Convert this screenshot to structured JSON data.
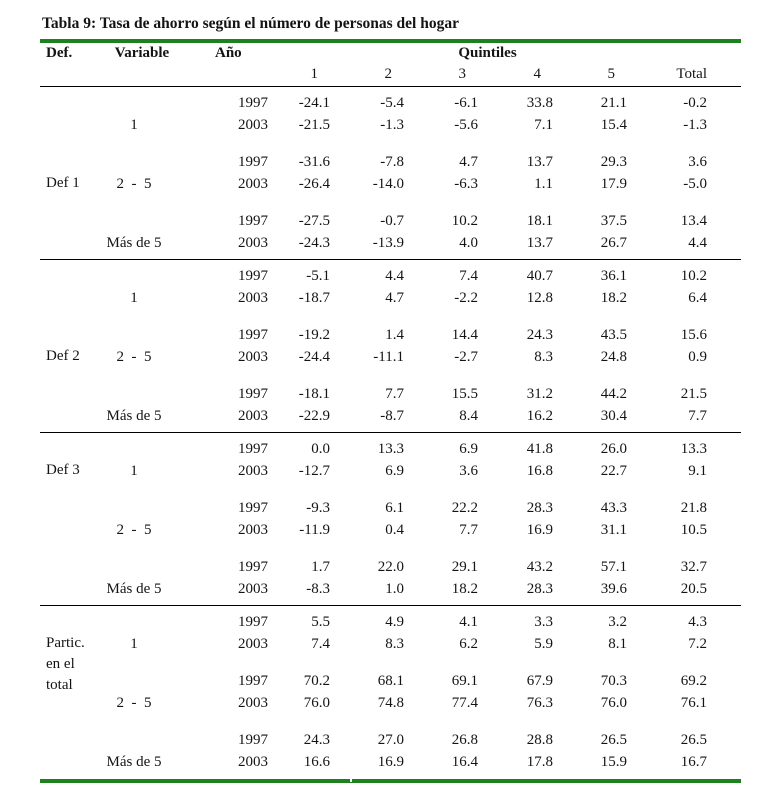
{
  "title": "Tabla 9: Tasa de ahorro según el número de personas del hogar",
  "rule_color": "#1d811d",
  "header": {
    "def": "Def.",
    "variable": "Variable",
    "year": "Año",
    "quintiles": "Quintiles",
    "quintile_columns": [
      "1",
      "2",
      "3",
      "4",
      "5"
    ],
    "total": "Total"
  },
  "table": {
    "sections": [
      {
        "def_label": "Def 1",
        "def_label_group": 1,
        "groups": [
          {
            "variable": "1",
            "rows": [
              {
                "year": "1997",
                "values": [
                  "-24.1",
                  "-5.4",
                  "-6.1",
                  "33.8",
                  "21.1",
                  "-0.2"
                ]
              },
              {
                "year": "2003",
                "values": [
                  "-21.5",
                  "-1.3",
                  "-5.6",
                  "7.1",
                  "15.4",
                  "-1.3"
                ]
              }
            ]
          },
          {
            "variable": "2  -  5",
            "rows": [
              {
                "year": "1997",
                "values": [
                  "-31.6",
                  "-7.8",
                  "4.7",
                  "13.7",
                  "29.3",
                  "3.6"
                ]
              },
              {
                "year": "2003",
                "values": [
                  "-26.4",
                  "-14.0",
                  "-6.3",
                  "1.1",
                  "17.9",
                  "-5.0"
                ]
              }
            ]
          },
          {
            "variable": "Más de 5",
            "rows": [
              {
                "year": "1997",
                "values": [
                  "-27.5",
                  "-0.7",
                  "10.2",
                  "18.1",
                  "37.5",
                  "13.4"
                ]
              },
              {
                "year": "2003",
                "values": [
                  "-24.3",
                  "-13.9",
                  "4.0",
                  "13.7",
                  "26.7",
                  "4.4"
                ]
              }
            ]
          }
        ]
      },
      {
        "def_label": "Def 2",
        "def_label_group": 1,
        "groups": [
          {
            "variable": "1",
            "rows": [
              {
                "year": "1997",
                "values": [
                  "-5.1",
                  "4.4",
                  "7.4",
                  "40.7",
                  "36.1",
                  "10.2"
                ]
              },
              {
                "year": "2003",
                "values": [
                  "-18.7",
                  "4.7",
                  "-2.2",
                  "12.8",
                  "18.2",
                  "6.4"
                ]
              }
            ]
          },
          {
            "variable": "2  -  5",
            "rows": [
              {
                "year": "1997",
                "values": [
                  "-19.2",
                  "1.4",
                  "14.4",
                  "24.3",
                  "43.5",
                  "15.6"
                ]
              },
              {
                "year": "2003",
                "values": [
                  "-24.4",
                  "-11.1",
                  "-2.7",
                  "8.3",
                  "24.8",
                  "0.9"
                ]
              }
            ]
          },
          {
            "variable": "Más de 5",
            "rows": [
              {
                "year": "1997",
                "values": [
                  "-18.1",
                  "7.7",
                  "15.5",
                  "31.2",
                  "44.2",
                  "21.5"
                ]
              },
              {
                "year": "2003",
                "values": [
                  "-22.9",
                  "-8.7",
                  "8.4",
                  "16.2",
                  "30.4",
                  "7.7"
                ]
              }
            ]
          }
        ]
      },
      {
        "def_label": "Def 3",
        "def_label_group": 0,
        "groups": [
          {
            "variable": "1",
            "rows": [
              {
                "year": "1997",
                "values": [
                  "0.0",
                  "13.3",
                  "6.9",
                  "41.8",
                  "26.0",
                  "13.3"
                ]
              },
              {
                "year": "2003",
                "values": [
                  "-12.7",
                  "6.9",
                  "3.6",
                  "16.8",
                  "22.7",
                  "9.1"
                ]
              }
            ]
          },
          {
            "variable": "2  -  5",
            "rows": [
              {
                "year": "1997",
                "values": [
                  "-9.3",
                  "6.1",
                  "22.2",
                  "28.3",
                  "43.3",
                  "21.8"
                ]
              },
              {
                "year": "2003",
                "values": [
                  "-11.9",
                  "0.4",
                  "7.7",
                  "16.9",
                  "31.1",
                  "10.5"
                ]
              }
            ]
          },
          {
            "variable": "Más de 5",
            "rows": [
              {
                "year": "1997",
                "values": [
                  "1.7",
                  "22.0",
                  "29.1",
                  "43.2",
                  "57.1",
                  "32.7"
                ]
              },
              {
                "year": "2003",
                "values": [
                  "-8.3",
                  "1.0",
                  "18.2",
                  "28.3",
                  "39.6",
                  "20.5"
                ]
              }
            ]
          }
        ]
      },
      {
        "def_label": "Partic.\nen el\ntotal",
        "def_label_group": 0,
        "groups": [
          {
            "variable": "1",
            "rows": [
              {
                "year": "1997",
                "values": [
                  "5.5",
                  "4.9",
                  "4.1",
                  "3.3",
                  "3.2",
                  "4.3"
                ]
              },
              {
                "year": "2003",
                "values": [
                  "7.4",
                  "8.3",
                  "6.2",
                  "5.9",
                  "8.1",
                  "7.2"
                ]
              }
            ]
          },
          {
            "variable": "2  -  5",
            "rows": [
              {
                "year": "1997",
                "values": [
                  "70.2",
                  "68.1",
                  "69.1",
                  "67.9",
                  "70.3",
                  "69.2"
                ]
              },
              {
                "year": "2003",
                "values": [
                  "76.0",
                  "74.8",
                  "77.4",
                  "76.3",
                  "76.0",
                  "76.1"
                ]
              }
            ]
          },
          {
            "variable": "Más de 5",
            "rows": [
              {
                "year": "1997",
                "values": [
                  "24.3",
                  "27.0",
                  "26.8",
                  "28.8",
                  "26.5",
                  "26.5"
                ]
              },
              {
                "year": "2003",
                "values": [
                  "16.6",
                  "16.9",
                  "16.4",
                  "17.8",
                  "15.9",
                  "16.7"
                ]
              }
            ]
          }
        ]
      }
    ]
  }
}
